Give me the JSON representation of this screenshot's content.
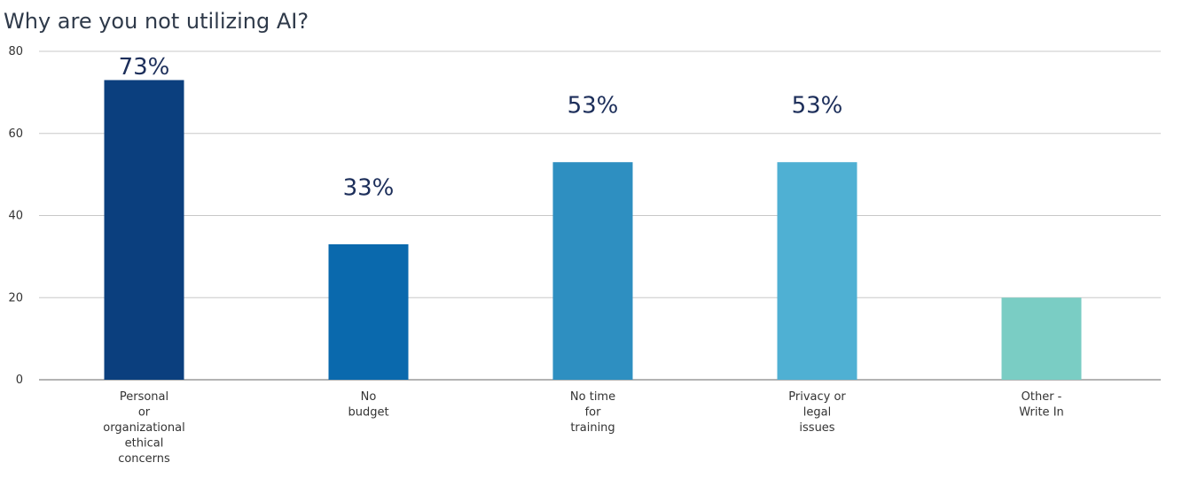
{
  "chart_data": {
    "type": "bar",
    "title": "Why are you not utilizing AI?",
    "xlabel": "",
    "ylabel": "",
    "ylim": [
      0,
      80
    ],
    "yticks": [
      0,
      20,
      40,
      60,
      80
    ],
    "grid": true,
    "categories": [
      [
        "Personal",
        "or",
        "organizational",
        "ethical",
        "concerns"
      ],
      [
        "No",
        "budget"
      ],
      [
        "No time",
        "for",
        "training"
      ],
      [
        "Privacy or",
        "legal",
        "issues"
      ],
      [
        "Other -",
        "Write In"
      ]
    ],
    "values": [
      73,
      33,
      53,
      53,
      20
    ],
    "data_labels": [
      "73%",
      "33%",
      "53%",
      "53%",
      ""
    ],
    "colors": [
      "#0b3f7e",
      "#0a69ad",
      "#2e8fc1",
      "#4fb0d3",
      "#7acdc4"
    ]
  }
}
